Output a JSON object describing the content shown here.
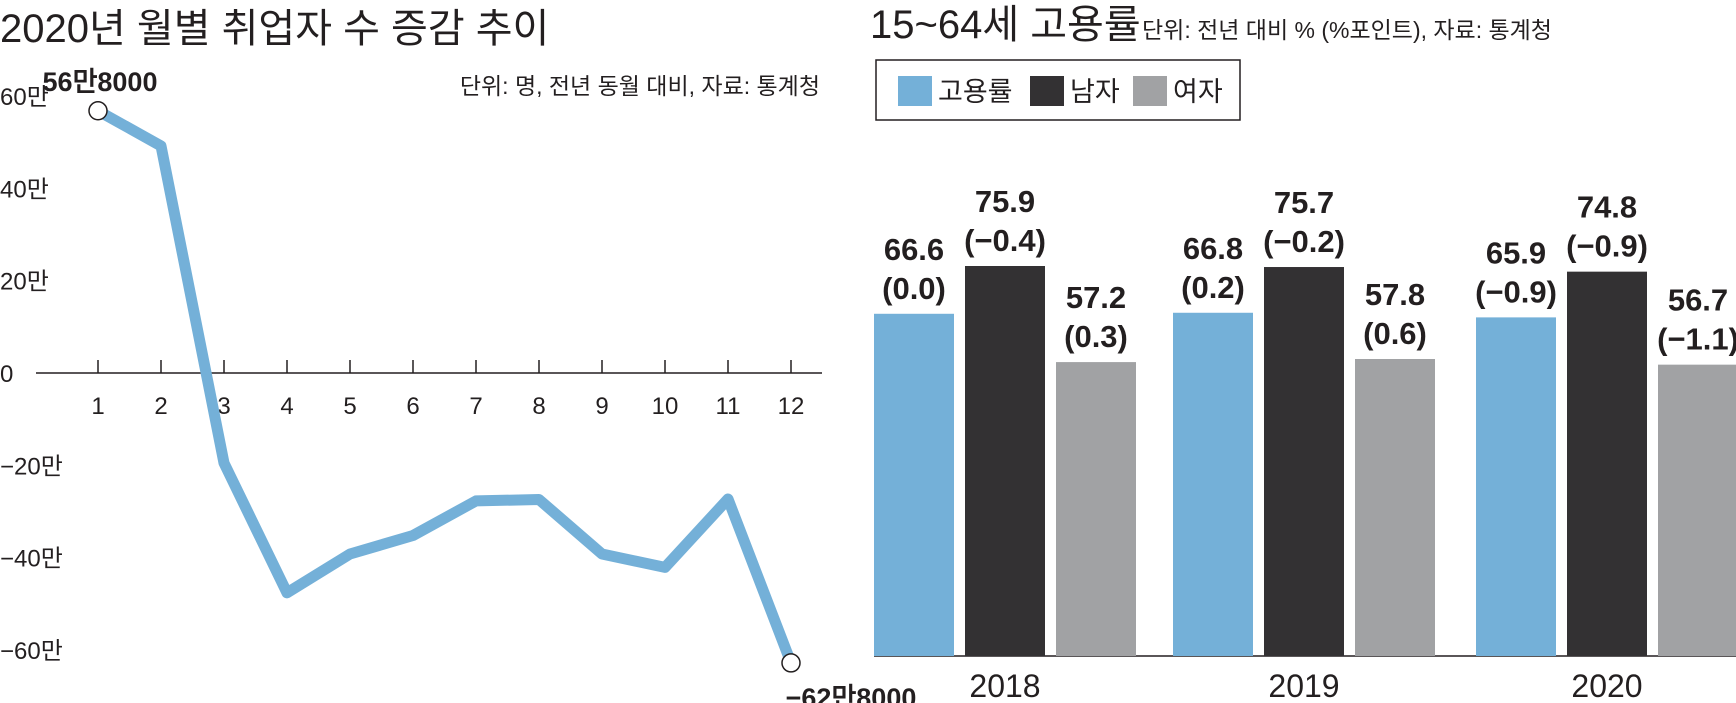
{
  "chart_data": [
    {
      "type": "line",
      "title": "2020년 월별 취업자 수 증감 추이",
      "subtitle": "단위: 명, 전년 동월 대비, 자료: 통계청",
      "x": [
        1,
        2,
        3,
        4,
        5,
        6,
        7,
        8,
        9,
        10,
        11,
        12
      ],
      "x_tick_labels": [
        "1",
        "2",
        "3",
        "4",
        "5",
        "6",
        "7",
        "8",
        "9",
        "10",
        "11",
        "12"
      ],
      "series": [
        {
          "values": [
            568000,
            492000,
            -195000,
            -476000,
            -392000,
            -352000,
            -277000,
            -274000,
            -392000,
            -421000,
            -273000,
            -628000
          ]
        }
      ],
      "ylim": [
        -650000,
        650000
      ],
      "y_ticks": [
        600000,
        400000,
        200000,
        0,
        -200000,
        -400000,
        -600000
      ],
      "y_tick_labels": [
        "60만",
        "40만",
        "20만",
        "0",
        "−20만",
        "−40만",
        "−60만"
      ],
      "annotations": [
        {
          "index": 0,
          "text": "56만8000"
        },
        {
          "index": 11,
          "text": "−62만8000"
        }
      ],
      "color": "#74b0d8",
      "grid": false
    },
    {
      "type": "bar",
      "title": "15~64세 고용률",
      "subtitle": "단위: 전년 대비 % (%포인트), 자료: 통계청",
      "categories": [
        "2018",
        "2019",
        "2020"
      ],
      "series": [
        {
          "name": "고용률",
          "color": "#74b0d8",
          "values": [
            66.6,
            66.8,
            65.9
          ],
          "changes": [
            "(0.0)",
            "(0.2)",
            "(−0.9)"
          ]
        },
        {
          "name": "남자",
          "color": "#333133",
          "values": [
            75.9,
            75.7,
            74.8
          ],
          "changes": [
            "(−0.4)",
            "(−0.2)",
            "(−0.9)"
          ]
        },
        {
          "name": "여자",
          "color": "#a1a2a4",
          "values": [
            57.2,
            57.8,
            56.7
          ],
          "changes": [
            "(0.3)",
            "(0.6)",
            "(−1.1)"
          ]
        }
      ],
      "legend": "top-left",
      "grid": false
    }
  ]
}
